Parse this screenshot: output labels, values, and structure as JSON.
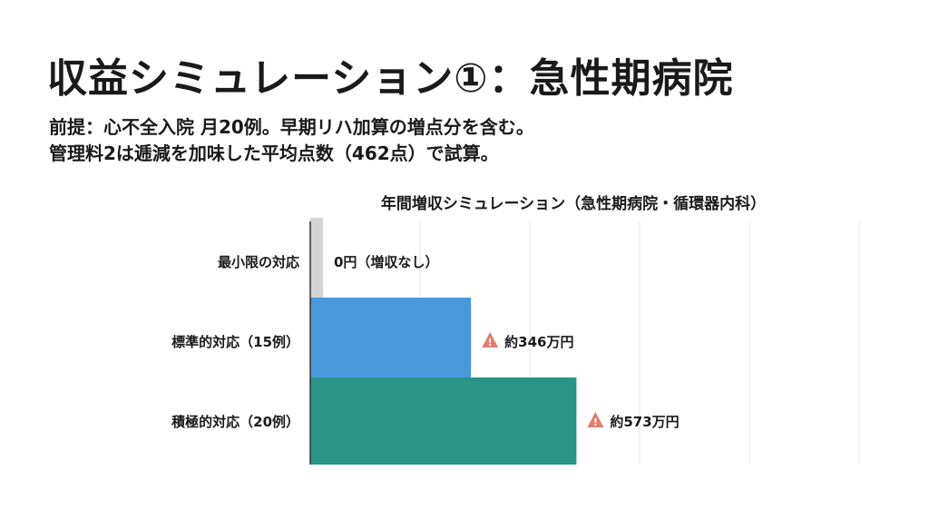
{
  "slide": {
    "title": "収益シミュレーション①：急性期病院",
    "premise_line1": "前提：心不全入院 月20例。早期リハ加算の増点分を含む。",
    "premise_line2": "管理料2は逓減を加味した平均点数（462点）で試算。"
  },
  "chart_data": {
    "type": "bar",
    "orientation": "horizontal",
    "title": "年間増収シミュレーション（急性期病院・循環器内科）",
    "xlabel": "",
    "ylabel": "",
    "unit": "万円",
    "xlim": [
      0,
      1000
    ],
    "grid": true,
    "legend": "none",
    "categories": [
      "最小限の対応",
      "標準的対応（15例）",
      "積極的対応（20例）"
    ],
    "values": [
      0,
      346,
      573
    ],
    "data_labels": [
      "0円（増収なし）",
      "約346万円",
      "約573万円"
    ],
    "warning_marks": [
      false,
      true,
      true
    ],
    "colors": [
      "#d4d4d4",
      "#4a98dc",
      "#2a9486"
    ]
  },
  "colors": {
    "warning": "#e57c6e",
    "grid": "#e6e6e6",
    "axis": "#333333"
  }
}
